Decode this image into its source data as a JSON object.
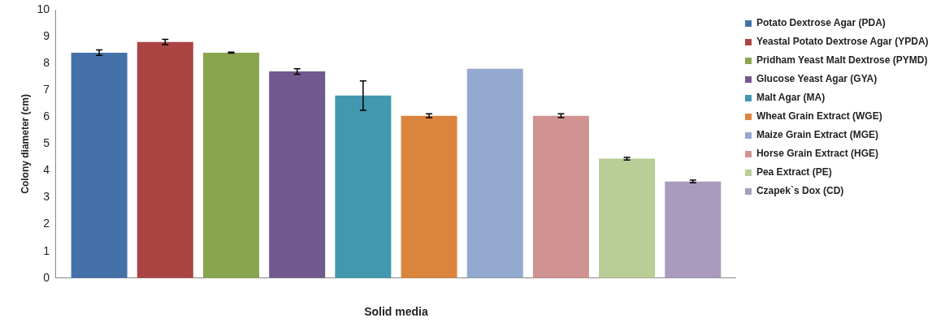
{
  "chart_data": {
    "type": "bar",
    "xlabel": "Solid media",
    "ylabel": "Colony diameter (cm)",
    "categories": [
      null
    ],
    "series": [
      {
        "name": "Potato Dextrose Agar (PDA)",
        "color": "#4472a8",
        "values": [
          8.4
        ],
        "errors": [
          0.1
        ]
      },
      {
        "name": "Yeastal Potato Dextrose Agar (YPDA)",
        "color": "#aa4543",
        "values": [
          8.8
        ],
        "errors": [
          0.1
        ]
      },
      {
        "name": "Pridham Yeast Malt Dextrose (PYMD)",
        "color": "#89a54e",
        "values": [
          8.4
        ],
        "errors": [
          0.02
        ]
      },
      {
        "name": "Glucose Yeast Agar (GYA)",
        "color": "#71588f",
        "values": [
          7.7
        ],
        "errors": [
          0.1
        ]
      },
      {
        "name": "Malt Agar (MA)",
        "color": "#4198af",
        "values": [
          6.8
        ],
        "errors": [
          0.55
        ]
      },
      {
        "name": "Wheat Grain Extract (WGE)",
        "color": "#db843d",
        "values": [
          6.05
        ],
        "errors": [
          0.07
        ]
      },
      {
        "name": "Maize Grain Extract (MGE)",
        "color": "#93a9cf",
        "values": [
          7.8
        ]
      },
      {
        "name": "Horse Grain Extract (HGE)",
        "color": "#d19392",
        "values": [
          6.05
        ],
        "errors": [
          0.07
        ]
      },
      {
        "name": "Pea Extract (PE)",
        "color": "#b9cd96",
        "values": [
          4.45
        ],
        "errors": [
          0.05
        ]
      },
      {
        "name": "Czapek`s Dox (CD)",
        "color": "#a99bbd",
        "values": [
          3.6
        ],
        "errors": [
          0.05
        ]
      }
    ],
    "ylim": [
      0,
      10
    ],
    "yticks": [
      0,
      1,
      2,
      3,
      4,
      5,
      6,
      7,
      8,
      9,
      10
    ],
    "grid": false,
    "legend": "right"
  }
}
